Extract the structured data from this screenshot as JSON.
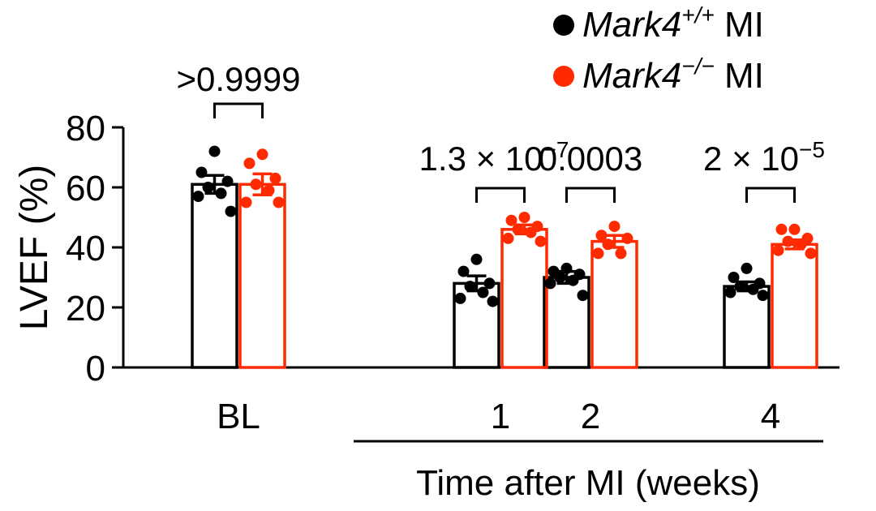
{
  "chart_data": {
    "type": "bar",
    "ylabel": "LVEF (%)",
    "xlabel": "Time after MI (weeks)",
    "ylim": [
      0,
      80
    ],
    "yticks": [
      "0",
      "20",
      "40",
      "60",
      "80"
    ],
    "categories": [
      "BL",
      "1",
      "2",
      "4"
    ],
    "grid": false,
    "legend_position": "top-right",
    "series": [
      {
        "name": "Mark4+/+ MI",
        "legend_gene": "Mark4",
        "legend_sup": "+/+",
        "legend_suffix": " MI",
        "color": "#000000",
        "values": [
          61,
          28,
          30,
          27
        ],
        "sem": [
          3,
          2.5,
          2,
          1.5
        ],
        "points": [
          [
            72,
            65,
            62,
            60,
            58,
            57,
            52
          ],
          [
            36,
            32,
            28,
            27,
            25,
            23,
            22
          ],
          [
            33,
            32,
            31,
            30,
            29,
            28,
            24
          ],
          [
            33,
            30,
            28,
            27,
            26,
            25,
            24
          ]
        ]
      },
      {
        "name": "Mark4−/− MI",
        "legend_gene": "Mark4",
        "legend_sup": "−/−",
        "legend_suffix": " MI",
        "color": "#ff2a00",
        "values": [
          61,
          46,
          42,
          41
        ],
        "sem": [
          3.5,
          1.5,
          2,
          1.5
        ],
        "points": [
          [
            71,
            68,
            63,
            61,
            59,
            55,
            55
          ],
          [
            50,
            49,
            47,
            46,
            45,
            43,
            42
          ],
          [
            47,
            44,
            43,
            41,
            38,
            38
          ],
          [
            46,
            46,
            43,
            42,
            41,
            39,
            38
          ]
        ]
      }
    ],
    "annotations": [
      {
        "category": 0,
        "label": ">0.9999"
      },
      {
        "category": 1,
        "label": "1.3 × 10",
        "sup": "−7"
      },
      {
        "category": 2,
        "label": "0.0003"
      },
      {
        "category": 3,
        "label": "2 × 10",
        "sup": "−5"
      }
    ]
  }
}
